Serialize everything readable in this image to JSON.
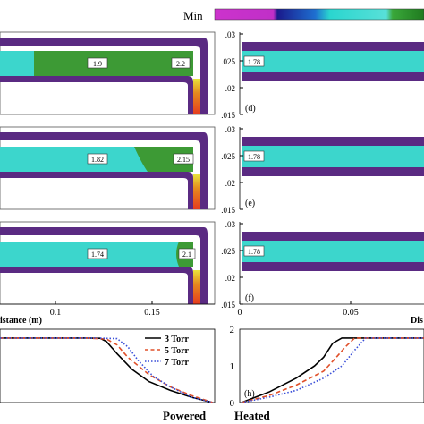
{
  "colorbar": {
    "label": "Min",
    "colors": [
      "#cc33cc",
      "#1a1a8c",
      "#1e6fd0",
      "#2ad6cf",
      "#58e0d8",
      "#3aa83a",
      "#1f7a1f"
    ]
  },
  "colors": {
    "purple_wall": "#5a2a82",
    "cyan": "#3cd6cc",
    "green": "#3d9a35",
    "white": "#ffffff",
    "red": "#e53b1f",
    "orange": "#e58a1e",
    "yellow": "#e8e43c"
  },
  "contours_left": [
    {
      "left_label": "1.9",
      "right_label": "2.2",
      "field": "green"
    },
    {
      "left_label": "1.82",
      "right_label": "2.15",
      "field": "cyan"
    },
    {
      "left_label": "1.74",
      "right_label": "2.1",
      "field": "cyan"
    }
  ],
  "contours_right": [
    {
      "value_label": "1.78",
      "panel_label": "(d)"
    },
    {
      "value_label": "1.78",
      "panel_label": "(e)"
    },
    {
      "value_label": "1.78",
      "panel_label": "(f)"
    }
  ],
  "right_axis_ticks": [
    ".03",
    ".025",
    ".02",
    ".015"
  ],
  "left_x_axis": {
    "title_fragment": "istance (m)",
    "ticks": [
      "0.1",
      "0.15"
    ]
  },
  "right_x_axis": {
    "title_fragment": "Dis",
    "ticks": [
      "0",
      "0.05"
    ]
  },
  "bottom_left_label": "Powered",
  "bottom_right_label": "Heated",
  "chart_data": [
    {
      "type": "line",
      "title": "",
      "xlabel": "",
      "ylabel": "",
      "series": [
        {
          "name": "3 Torr",
          "style": "solid",
          "color": "#000000",
          "x": [
            0.0,
            0.2,
            0.4,
            0.47,
            0.5,
            0.55,
            0.62,
            0.7,
            0.8,
            0.9,
            1.0
          ],
          "y": [
            1.85,
            1.85,
            1.85,
            1.84,
            1.75,
            1.4,
            0.95,
            0.6,
            0.35,
            0.15,
            0.0
          ]
        },
        {
          "name": "5 Torr",
          "style": "dashed",
          "color": "#e0502a",
          "x": [
            0.0,
            0.2,
            0.4,
            0.5,
            0.55,
            0.6,
            0.7,
            0.8,
            0.9,
            1.0
          ],
          "y": [
            1.85,
            1.85,
            1.85,
            1.82,
            1.65,
            1.3,
            0.8,
            0.45,
            0.2,
            0.0
          ]
        },
        {
          "name": "7 Torr",
          "style": "dotted",
          "color": "#3a4fd8",
          "x": [
            0.0,
            0.2,
            0.45,
            0.55,
            0.6,
            0.65,
            0.72,
            0.8,
            0.9,
            1.0
          ],
          "y": [
            1.85,
            1.85,
            1.85,
            1.83,
            1.6,
            1.2,
            0.75,
            0.45,
            0.15,
            0.0
          ]
        }
      ],
      "legend": {
        "placement": "top-right",
        "entries": [
          "3 Torr",
          "5 Torr",
          "7 Torr"
        ]
      }
    },
    {
      "type": "line",
      "title": "",
      "xlabel": "",
      "ylabel": "",
      "panel_label": "(h)",
      "yticks": [
        "0",
        "1",
        "2"
      ],
      "ylim": [
        0,
        2
      ],
      "series": [
        {
          "name": "3 Torr",
          "style": "solid",
          "color": "#000000",
          "x": [
            0.0,
            0.15,
            0.3,
            0.4,
            0.45,
            0.5,
            0.55,
            0.6,
            0.8,
            1.0
          ],
          "y": [
            0.0,
            0.3,
            0.7,
            1.05,
            1.3,
            1.7,
            1.85,
            1.85,
            1.85,
            1.85
          ]
        },
        {
          "name": "5 Torr",
          "style": "dashed",
          "color": "#e0502a",
          "x": [
            0.0,
            0.15,
            0.3,
            0.45,
            0.52,
            0.57,
            0.62,
            0.8,
            1.0
          ],
          "y": [
            0.0,
            0.2,
            0.5,
            0.9,
            1.3,
            1.6,
            1.85,
            1.85,
            1.85
          ]
        },
        {
          "name": "7 Torr",
          "style": "dotted",
          "color": "#3a4fd8",
          "x": [
            0.0,
            0.15,
            0.3,
            0.45,
            0.55,
            0.62,
            0.68,
            0.8,
            1.0
          ],
          "y": [
            0.0,
            0.15,
            0.35,
            0.7,
            1.05,
            1.5,
            1.85,
            1.85,
            1.85
          ]
        }
      ]
    }
  ]
}
